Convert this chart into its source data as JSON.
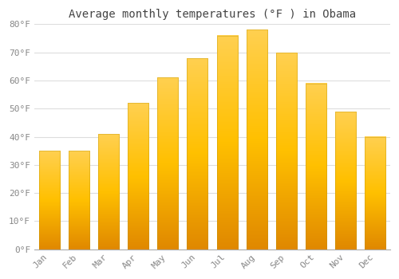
{
  "title": "Average monthly temperatures (°F ) in Obama",
  "months": [
    "Jan",
    "Feb",
    "Mar",
    "Apr",
    "May",
    "Jun",
    "Jul",
    "Aug",
    "Sep",
    "Oct",
    "Nov",
    "Dec"
  ],
  "values": [
    35,
    35,
    41,
    52,
    61,
    68,
    76,
    78,
    70,
    59,
    49,
    40
  ],
  "bar_color_main": "#FFA500",
  "bar_color_light": "#FFD000",
  "bar_color_dark": "#E08000",
  "bar_edge_color": "#C8A000",
  "ylim": [
    0,
    80
  ],
  "yticks": [
    0,
    10,
    20,
    30,
    40,
    50,
    60,
    70,
    80
  ],
  "ytick_labels": [
    "0°F",
    "10°F",
    "20°F",
    "30°F",
    "40°F",
    "50°F",
    "60°F",
    "70°F",
    "80°F"
  ],
  "background_color": "#FFFFFF",
  "plot_bg_color": "#FFFFFF",
  "grid_color": "#DDDDDD",
  "title_fontsize": 10,
  "tick_fontsize": 8,
  "bar_width": 0.7,
  "title_color": "#444444",
  "tick_color": "#888888"
}
